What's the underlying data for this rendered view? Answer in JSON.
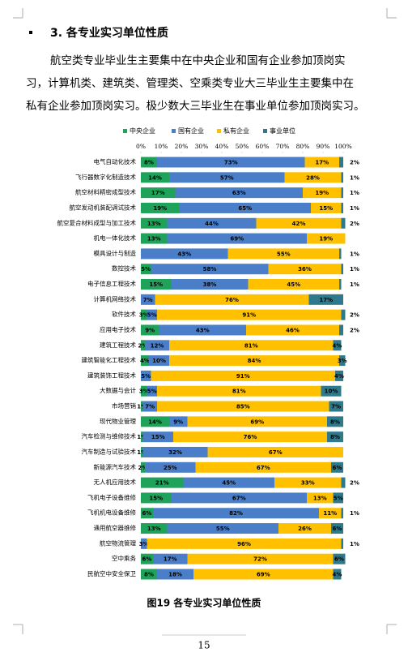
{
  "heading": "3. 各专业实习单位性质",
  "paragraph_lines": [
    "航空类专业毕业生主要集中在中央企业和国有企业参加顶岗实",
    "习，计算机类、建筑类、管理类、空乘类专业大三毕业生主要集中在",
    "私有企业参加顶岗实习。极少数大三毕业生在事业单位参加顶岗实习。"
  ],
  "chart_data": {
    "type": "stacked-bar-horizontal",
    "categories": [
      "电气自动化技术",
      "飞行器数字化制造技术",
      "航空材料精密成型技术",
      "航空发动机装配调试技术",
      "航空复合材料成型与加工技术",
      "机电一体化技术",
      "模具设计与制造",
      "数控技术",
      "电子信息工程技术",
      "计算机网络技术",
      "软件技术",
      "应用电子技术",
      "建筑工程技术",
      "建筑智能化工程技术",
      "建筑装饰工程技术",
      "大数据与会计",
      "市场营销",
      "现代物业管理",
      "汽车检测与维修技术",
      "汽车制造与试验技术",
      "新能源汽车技术",
      "无人机应用技术",
      "飞机电子设备维修",
      "飞机机电设备维修",
      "通用航空器维修",
      "航空物流管理",
      "空中乘务",
      "民航空中安全保卫"
    ],
    "series": [
      {
        "name": "中央企业",
        "color": "#1fa35a",
        "values": [
          8,
          14,
          17,
          19,
          13,
          13,
          null,
          5,
          15,
          null,
          3,
          9,
          2,
          4,
          null,
          3,
          1,
          14,
          1,
          1,
          2,
          21,
          15,
          6,
          13,
          null,
          6,
          8
        ],
        "value_labels": [
          "8%",
          "14%",
          "17%",
          "19%",
          "13%",
          "13%",
          null,
          "5%",
          "15%",
          null,
          "3%",
          "9%",
          "2%",
          "4%",
          null,
          "3%",
          "1%",
          "14%",
          "1%",
          "1%",
          "2%",
          "21%",
          "15%",
          "6%",
          "13%",
          null,
          "6%",
          "8%"
        ]
      },
      {
        "name": "国有企业",
        "color": "#4a7ec8",
        "values": [
          73,
          57,
          63,
          65,
          44,
          69,
          43,
          58,
          38,
          7,
          5,
          43,
          12,
          10,
          5,
          5,
          7,
          9,
          15,
          32,
          25,
          45,
          67,
          82,
          55,
          3,
          17,
          18
        ],
        "value_labels": [
          "73%",
          "57%",
          "63%",
          "65%",
          "44%",
          "69%",
          "43%",
          "58%",
          "38%",
          "7%",
          "5%",
          "43%",
          "12%",
          "10%",
          "5%",
          "5%",
          "7%",
          "9%",
          "15%",
          "32%",
          "25%",
          "45%",
          "67%",
          "82%",
          "55%",
          "3%",
          "17%",
          "18%"
        ]
      },
      {
        "name": "私有企业",
        "color": "#ffc000",
        "values": [
          17,
          28,
          19,
          15,
          42,
          19,
          55,
          36,
          45,
          76,
          91,
          46,
          81,
          84,
          91,
          81,
          85,
          69,
          76,
          67,
          67,
          33,
          13,
          11,
          26,
          96,
          72,
          69
        ],
        "value_labels": [
          "17%",
          "28%",
          "19%",
          "15%",
          "42%",
          "19%",
          "55%",
          "36%",
          "45%",
          "76%",
          "91%",
          "46%",
          "81%",
          "84%",
          "91%",
          "81%",
          "85%",
          "69%",
          "76%",
          "67%",
          "67%",
          "33%",
          "13%",
          "11%",
          "26%",
          "96%",
          "72%",
          "69%"
        ]
      },
      {
        "name": "事业单位",
        "color": "#2e7a8c",
        "values": [
          2,
          1,
          1,
          1,
          2,
          null,
          1,
          1,
          1,
          17,
          2,
          2,
          4,
          3,
          4,
          10,
          7,
          8,
          8,
          null,
          6,
          2,
          5,
          1,
          6,
          1,
          6,
          4
        ],
        "value_labels": [
          "2%",
          "1%",
          "1%",
          "1%",
          "2%",
          null,
          "1%",
          "1%",
          "1%",
          "17%",
          "2%",
          "2%",
          "4%",
          "3%",
          "4%",
          "10%",
          "7%",
          "8%",
          "8%",
          null,
          "6%",
          "2%",
          "5%",
          "1%",
          "6%",
          "1%",
          "6%",
          "4%"
        ]
      }
    ],
    "xlim": [
      0,
      100
    ],
    "xticks": [
      {
        "value": 0,
        "label": "0%"
      },
      {
        "value": 10,
        "label": "10%"
      },
      {
        "value": 20,
        "label": "20%"
      },
      {
        "value": 30,
        "label": "30%"
      },
      {
        "value": 40,
        "label": "40%"
      },
      {
        "value": 50,
        "label": "50%"
      },
      {
        "value": 60,
        "label": "60%"
      },
      {
        "value": 70,
        "label": "70%"
      },
      {
        "value": 80,
        "label": "80%"
      },
      {
        "value": 90,
        "label": "90%"
      },
      {
        "value": 100,
        "label": "100%"
      }
    ],
    "legend": "top"
  },
  "caption": "图19  各专业实习单位性质",
  "page_number": "15"
}
